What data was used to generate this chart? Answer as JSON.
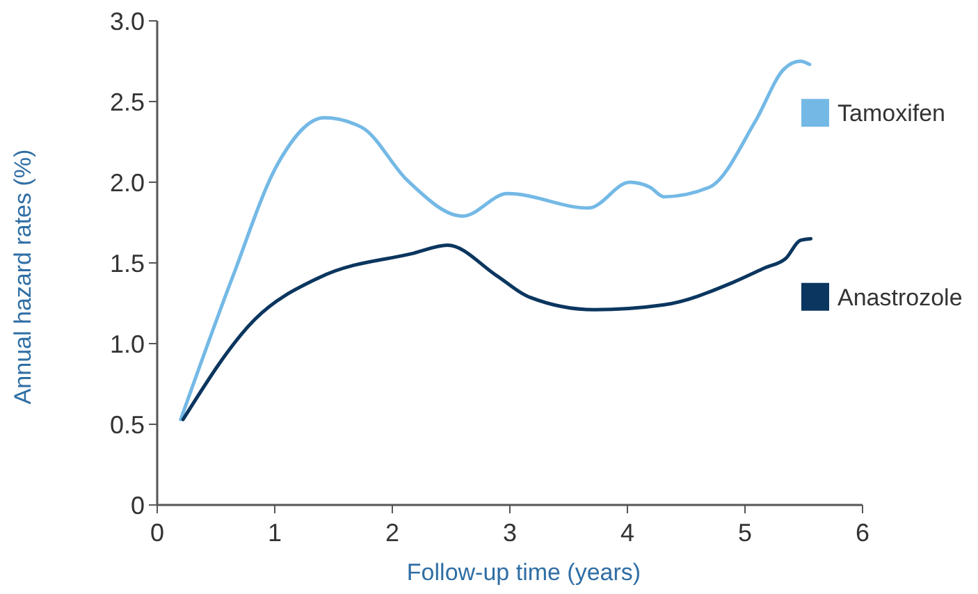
{
  "chart_data": {
    "type": "line",
    "xlabel": "Follow-up time (years)",
    "ylabel": "Annual hazard rates (%)",
    "xlim": [
      0,
      6
    ],
    "xticks": [
      0,
      1,
      2,
      3,
      4,
      5,
      6
    ],
    "ylim": [
      0,
      3
    ],
    "yticks": [
      0,
      0.5,
      {
        "value": 1,
        "label": "1.0"
      },
      1.5,
      {
        "value": 2,
        "label": "2.0"
      },
      2.5,
      {
        "value": 3,
        "label": "3.0"
      }
    ],
    "grid": false,
    "legend": "right",
    "marker": "none",
    "line_style": "solid",
    "series": [
      {
        "name": "Tamoxifen",
        "color": "#74b9e6",
        "x": [
          0.2,
          0.64,
          1.03,
          1.42,
          1.74,
          2.13,
          2.6,
          2.98,
          3.67,
          4.02,
          4.19,
          4.31,
          4.7,
          5.09,
          5.33,
          5.47,
          5.55
        ],
        "values": [
          0.53,
          1.41,
          2.12,
          2.4,
          2.34,
          2.01,
          1.79,
          1.93,
          1.84,
          2.0,
          1.97,
          1.91,
          1.97,
          2.38,
          2.7,
          2.75,
          2.73
        ]
      },
      {
        "name": "Anastrozole",
        "color": "#0b365f",
        "x": [
          0.22,
          0.83,
          1.38,
          2.18,
          2.47,
          2.89,
          3.16,
          3.72,
          4.31,
          4.9,
          5.17,
          5.35,
          5.47,
          5.56
        ],
        "values": [
          0.53,
          1.15,
          1.41,
          1.56,
          1.61,
          1.42,
          1.29,
          1.21,
          1.24,
          1.38,
          1.47,
          1.53,
          1.64,
          1.65
        ]
      }
    ]
  }
}
